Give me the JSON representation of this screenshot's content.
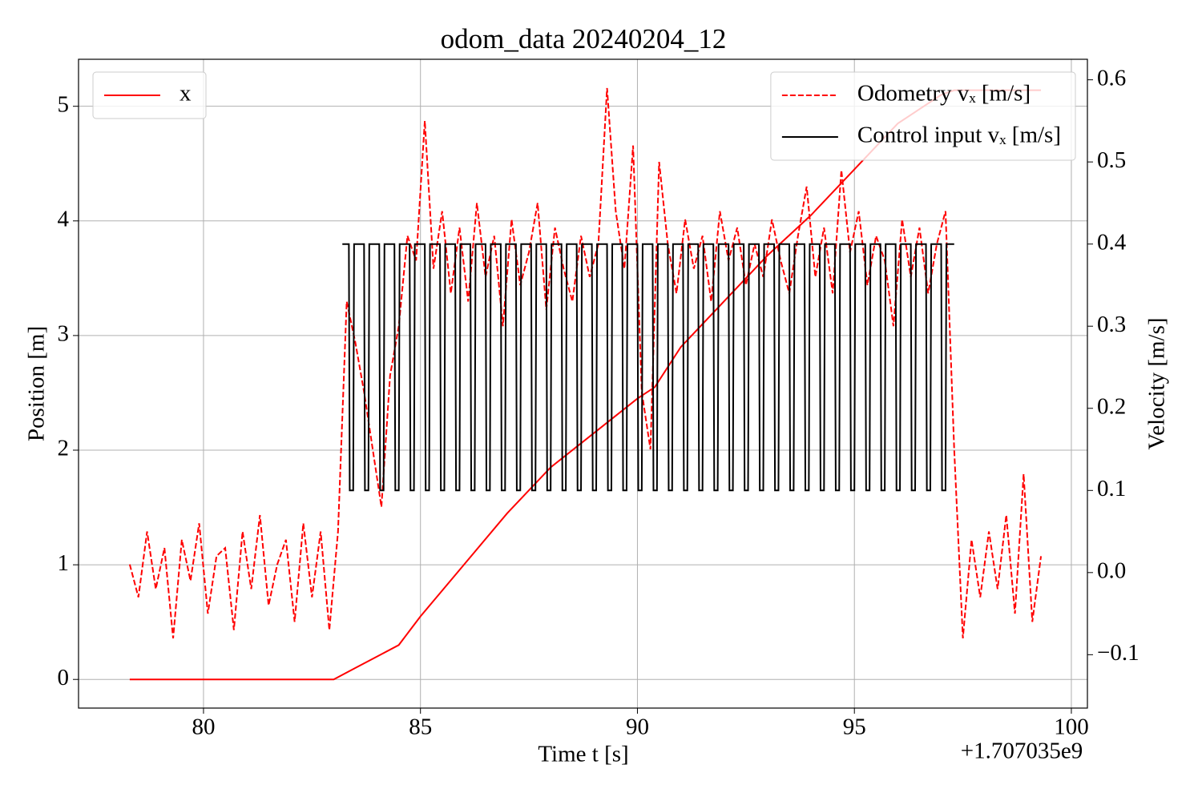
{
  "chart_data": {
    "type": "line",
    "title": "odom_data 20240204_12",
    "xlabel": "Time t [s]",
    "ylabel": "Position [m]",
    "y2label": "Velocity [m/s]",
    "x_offset_label": "+1.707035e9",
    "xlim": [
      77.12,
      100.37
    ],
    "ylim": [
      -0.25,
      5.41
    ],
    "y2lim": [
      -0.165,
      0.625
    ],
    "xticks": [
      80,
      85,
      90,
      95,
      100
    ],
    "yticks": [
      0,
      1,
      2,
      3,
      4,
      5
    ],
    "y2ticks": [
      {
        "value": -0.1,
        "label": "−0.1"
      },
      {
        "value": 0,
        "label": "0.0"
      },
      0.1,
      0.2,
      0.3,
      0.4,
      0.5,
      0.6
    ],
    "grid": true,
    "series": [
      {
        "name": "x",
        "color": "#ff0000",
        "axis": "y",
        "dash": "solid",
        "legend": "upper left",
        "x": [
          78.3,
          83.0,
          83.5,
          84.0,
          84.5,
          85.0,
          86.0,
          87.0,
          88.0,
          89.0,
          89.5,
          90.0,
          90.4,
          91.0,
          92.0,
          93.0,
          94.0,
          95.0,
          96.0,
          97.0,
          97.3,
          99.3
        ],
        "values": [
          0,
          0,
          0.1,
          0.2,
          0.3,
          0.55,
          1.0,
          1.45,
          1.85,
          2.15,
          2.3,
          2.45,
          2.55,
          2.9,
          3.3,
          3.7,
          4.05,
          4.45,
          4.85,
          5.1,
          5.14,
          5.14
        ]
      },
      {
        "name": "Odometry vₓ [m/s]",
        "color": "#ff0000",
        "axis": "y2",
        "dash": "dashed",
        "legend": "upper right",
        "x": [
          78.3,
          78.5,
          78.7,
          78.9,
          79.1,
          79.3,
          79.5,
          79.7,
          79.9,
          80.1,
          80.3,
          80.5,
          80.7,
          80.9,
          81.1,
          81.3,
          81.5,
          81.7,
          81.9,
          82.1,
          82.3,
          82.5,
          82.7,
          82.9,
          83.1,
          83.3,
          83.5,
          83.7,
          83.9,
          84.1,
          84.3,
          84.5,
          84.7,
          84.9,
          85.1,
          85.3,
          85.5,
          85.7,
          85.9,
          86.1,
          86.3,
          86.5,
          86.7,
          86.9,
          87.1,
          87.3,
          87.5,
          87.7,
          87.9,
          88.1,
          88.3,
          88.5,
          88.7,
          88.9,
          89.1,
          89.3,
          89.5,
          89.7,
          89.9,
          90.1,
          90.3,
          90.5,
          90.7,
          90.9,
          91.1,
          91.3,
          91.5,
          91.7,
          91.9,
          92.1,
          92.3,
          92.5,
          92.7,
          92.9,
          93.1,
          93.3,
          93.5,
          93.7,
          93.9,
          94.1,
          94.3,
          94.5,
          94.7,
          94.9,
          95.1,
          95.3,
          95.5,
          95.7,
          95.9,
          96.1,
          96.3,
          96.5,
          96.7,
          96.9,
          97.1,
          97.3,
          97.5,
          97.7,
          97.9,
          98.1,
          98.3,
          98.5,
          98.7,
          98.9,
          99.1,
          99.3
        ],
        "values": [
          0.01,
          -0.03,
          0.05,
          -0.02,
          0.03,
          -0.08,
          0.04,
          -0.01,
          0.06,
          -0.05,
          0.02,
          0.03,
          -0.07,
          0.05,
          -0.02,
          0.07,
          -0.04,
          0.01,
          0.04,
          -0.06,
          0.06,
          -0.03,
          0.05,
          -0.07,
          0.05,
          0.33,
          0.28,
          0.22,
          0.15,
          0.08,
          0.24,
          0.3,
          0.41,
          0.38,
          0.55,
          0.37,
          0.44,
          0.34,
          0.42,
          0.33,
          0.45,
          0.36,
          0.41,
          0.3,
          0.43,
          0.35,
          0.39,
          0.45,
          0.32,
          0.42,
          0.37,
          0.33,
          0.41,
          0.36,
          0.4,
          0.59,
          0.44,
          0.37,
          0.52,
          0.22,
          0.15,
          0.5,
          0.4,
          0.34,
          0.43,
          0.37,
          0.41,
          0.33,
          0.44,
          0.38,
          0.42,
          0.35,
          0.4,
          0.36,
          0.43,
          0.38,
          0.34,
          0.41,
          0.47,
          0.36,
          0.42,
          0.34,
          0.49,
          0.39,
          0.44,
          0.35,
          0.41,
          0.38,
          0.3,
          0.43,
          0.36,
          0.42,
          0.34,
          0.4,
          0.44,
          0.15,
          -0.08,
          0.04,
          -0.03,
          0.05,
          -0.02,
          0.07,
          -0.05,
          0.12,
          -0.06,
          0.02
        ]
      },
      {
        "name": "Control input vₓ [m/s]",
        "color": "#000000",
        "axis": "y2",
        "dash": "solid",
        "legend": "upper right",
        "x": [
          83.2,
          83.35,
          83.37,
          83.45,
          83.47,
          83.7,
          83.72,
          83.8,
          83.82,
          84.05,
          84.07,
          84.15,
          84.17,
          84.4,
          84.42,
          84.5,
          84.52,
          84.75,
          84.77,
          84.85,
          84.87,
          85.1,
          85.12,
          85.2,
          85.22,
          85.45,
          85.47,
          85.55,
          85.57,
          85.8,
          85.82,
          85.9,
          85.92,
          86.15,
          86.17,
          86.25,
          86.27,
          86.5,
          86.52,
          86.6,
          86.62,
          86.85,
          86.87,
          86.95,
          86.97,
          87.2,
          87.22,
          87.3,
          87.32,
          87.55,
          87.57,
          87.65,
          87.67,
          87.9,
          87.92,
          88.0,
          88.02,
          88.25,
          88.27,
          88.35,
          88.37,
          88.6,
          88.62,
          88.7,
          88.72,
          88.95,
          88.97,
          89.05,
          89.07,
          89.3,
          89.32,
          89.4,
          89.42,
          89.65,
          89.67,
          89.75,
          89.77,
          90.0,
          90.02,
          90.1,
          90.12,
          90.35,
          90.37,
          90.45,
          90.47,
          90.7,
          90.72,
          90.8,
          90.82,
          91.05,
          91.07,
          91.15,
          91.17,
          91.4,
          91.42,
          91.5,
          91.52,
          91.75,
          91.77,
          91.85,
          91.87,
          92.1,
          92.12,
          92.2,
          92.22,
          92.45,
          92.47,
          92.55,
          92.57,
          92.8,
          92.82,
          92.9,
          92.92,
          93.15,
          93.17,
          93.25,
          93.27,
          93.5,
          93.52,
          93.6,
          93.62,
          93.85,
          93.87,
          93.95,
          93.97,
          94.2,
          94.22,
          94.3,
          94.32,
          94.55,
          94.57,
          94.65,
          94.67,
          94.9,
          94.92,
          95.0,
          95.02,
          95.25,
          95.27,
          95.35,
          95.37,
          95.6,
          95.62,
          95.7,
          95.72,
          95.95,
          95.97,
          96.05,
          96.07,
          96.3,
          96.32,
          96.4,
          96.42,
          96.65,
          96.67,
          96.75,
          96.77,
          97.0,
          97.02,
          97.1,
          97.12,
          97.3
        ],
        "values": [
          0.4,
          0.4,
          0.1,
          0.1,
          0.4,
          0.4,
          0.1,
          0.1,
          0.4,
          0.4,
          0.1,
          0.1,
          0.4,
          0.4,
          0.1,
          0.1,
          0.4,
          0.4,
          0.1,
          0.1,
          0.4,
          0.4,
          0.1,
          0.1,
          0.4,
          0.4,
          0.1,
          0.1,
          0.4,
          0.4,
          0.1,
          0.1,
          0.4,
          0.4,
          0.1,
          0.1,
          0.4,
          0.4,
          0.1,
          0.1,
          0.4,
          0.4,
          0.1,
          0.1,
          0.4,
          0.4,
          0.1,
          0.1,
          0.4,
          0.4,
          0.1,
          0.1,
          0.4,
          0.4,
          0.1,
          0.1,
          0.4,
          0.4,
          0.1,
          0.1,
          0.4,
          0.4,
          0.1,
          0.1,
          0.4,
          0.4,
          0.1,
          0.1,
          0.4,
          0.4,
          0.1,
          0.1,
          0.4,
          0.4,
          0.1,
          0.1,
          0.4,
          0.4,
          0.1,
          0.1,
          0.4,
          0.4,
          0.1,
          0.1,
          0.4,
          0.4,
          0.1,
          0.1,
          0.4,
          0.4,
          0.1,
          0.1,
          0.4,
          0.4,
          0.1,
          0.1,
          0.4,
          0.4,
          0.1,
          0.1,
          0.4,
          0.4,
          0.1,
          0.1,
          0.4,
          0.4,
          0.1,
          0.1,
          0.4,
          0.4,
          0.1,
          0.1,
          0.4,
          0.4,
          0.1,
          0.1,
          0.4,
          0.4,
          0.1,
          0.1,
          0.4,
          0.4,
          0.1,
          0.1,
          0.4,
          0.4,
          0.1,
          0.1,
          0.4,
          0.4,
          0.1,
          0.1,
          0.4,
          0.4,
          0.1,
          0.1,
          0.4,
          0.4,
          0.1,
          0.1,
          0.4,
          0.4,
          0.1,
          0.1,
          0.4,
          0.4,
          0.1,
          0.1,
          0.4,
          0.4,
          0.1,
          0.1,
          0.4,
          0.4,
          0.1,
          0.1,
          0.4,
          0.4,
          0.1,
          0.1,
          0.4,
          0.4
        ]
      }
    ]
  }
}
